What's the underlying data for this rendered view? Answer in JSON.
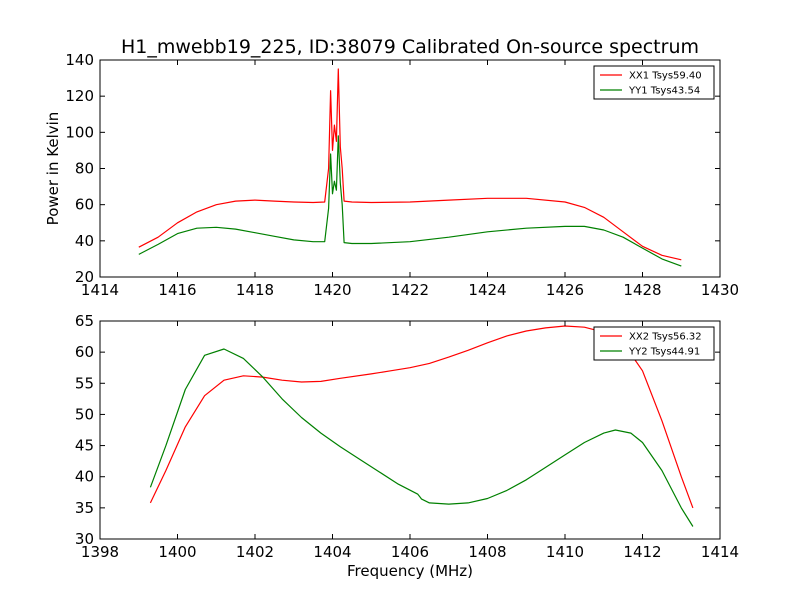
{
  "title": "H1_mwebb19_225, ID:38079 Calibrated On-source spectrum",
  "chart_data": [
    {
      "type": "line",
      "ylabel": "Power in Kelvin",
      "xlabel": "",
      "xlim": [
        1414,
        1430
      ],
      "ylim": [
        20,
        140
      ],
      "xticks": [
        1414,
        1416,
        1418,
        1420,
        1422,
        1424,
        1426,
        1428,
        1430
      ],
      "yticks": [
        20,
        40,
        60,
        80,
        100,
        120,
        140
      ],
      "legend_placement": "top-right",
      "series": [
        {
          "name": "XX1 Tsys59.40",
          "color": "#ff0000",
          "points": [
            [
              1415.0,
              36.5
            ],
            [
              1415.5,
              42
            ],
            [
              1416.0,
              50
            ],
            [
              1416.5,
              56
            ],
            [
              1417.0,
              60
            ],
            [
              1417.5,
              62
            ],
            [
              1418.0,
              62.5
            ],
            [
              1418.5,
              62
            ],
            [
              1419.0,
              61.5
            ],
            [
              1419.5,
              61.2
            ],
            [
              1419.8,
              61.5
            ],
            [
              1419.9,
              80
            ],
            [
              1419.95,
              123
            ],
            [
              1420.0,
              90
            ],
            [
              1420.05,
              104
            ],
            [
              1420.1,
              95
            ],
            [
              1420.15,
              135
            ],
            [
              1420.2,
              92
            ],
            [
              1420.25,
              80
            ],
            [
              1420.3,
              62
            ],
            [
              1420.5,
              61.5
            ],
            [
              1421.0,
              61.2
            ],
            [
              1422.0,
              61.5
            ],
            [
              1423.0,
              62.5
            ],
            [
              1424.0,
              63.5
            ],
            [
              1425.0,
              63.5
            ],
            [
              1426.0,
              61.5
            ],
            [
              1426.5,
              58.5
            ],
            [
              1427.0,
              53
            ],
            [
              1427.5,
              45
            ],
            [
              1428.0,
              37
            ],
            [
              1428.5,
              32
            ],
            [
              1429.0,
              29.5
            ]
          ]
        },
        {
          "name": "YY1 Tsys43.54",
          "color": "#008000",
          "points": [
            [
              1415.0,
              32.5
            ],
            [
              1415.5,
              38
            ],
            [
              1416.0,
              44
            ],
            [
              1416.5,
              47
            ],
            [
              1417.0,
              47.5
            ],
            [
              1417.5,
              46.5
            ],
            [
              1418.0,
              44.5
            ],
            [
              1418.5,
              42.5
            ],
            [
              1419.0,
              40.5
            ],
            [
              1419.5,
              39.5
            ],
            [
              1419.8,
              39.5
            ],
            [
              1419.9,
              58
            ],
            [
              1419.95,
              88
            ],
            [
              1420.0,
              66
            ],
            [
              1420.05,
              73
            ],
            [
              1420.1,
              68
            ],
            [
              1420.15,
              98
            ],
            [
              1420.2,
              72
            ],
            [
              1420.25,
              60
            ],
            [
              1420.3,
              39
            ],
            [
              1420.5,
              38.5
            ],
            [
              1421.0,
              38.5
            ],
            [
              1422.0,
              39.5
            ],
            [
              1423.0,
              42
            ],
            [
              1424.0,
              45
            ],
            [
              1425.0,
              47
            ],
            [
              1426.0,
              48
            ],
            [
              1426.5,
              48
            ],
            [
              1427.0,
              46
            ],
            [
              1427.5,
              42
            ],
            [
              1428.0,
              36
            ],
            [
              1428.5,
              30
            ],
            [
              1429.0,
              26
            ]
          ]
        }
      ]
    },
    {
      "type": "line",
      "ylabel": "",
      "xlabel": "Frequency (MHz)",
      "xlim": [
        1398,
        1414
      ],
      "ylim": [
        30,
        65
      ],
      "xticks": [
        1398,
        1400,
        1402,
        1404,
        1406,
        1408,
        1410,
        1412,
        1414
      ],
      "yticks": [
        30,
        35,
        40,
        45,
        50,
        55,
        60,
        65
      ],
      "legend_placement": "top-right",
      "series": [
        {
          "name": "XX2 Tsys56.32",
          "color": "#ff0000",
          "points": [
            [
              1399.3,
              35.8
            ],
            [
              1399.7,
              41
            ],
            [
              1400.2,
              48
            ],
            [
              1400.7,
              53
            ],
            [
              1401.2,
              55.5
            ],
            [
              1401.7,
              56.2
            ],
            [
              1402.2,
              56
            ],
            [
              1402.7,
              55.5
            ],
            [
              1403.2,
              55.2
            ],
            [
              1403.7,
              55.3
            ],
            [
              1404.2,
              55.8
            ],
            [
              1405.0,
              56.5
            ],
            [
              1405.5,
              57
            ],
            [
              1406.0,
              57.5
            ],
            [
              1406.5,
              58.2
            ],
            [
              1407.0,
              59.2
            ],
            [
              1407.5,
              60.3
            ],
            [
              1408.0,
              61.5
            ],
            [
              1408.5,
              62.6
            ],
            [
              1409.0,
              63.4
            ],
            [
              1409.5,
              63.9
            ],
            [
              1410.0,
              64.2
            ],
            [
              1410.5,
              64
            ],
            [
              1411.0,
              63.2
            ],
            [
              1411.5,
              61.5
            ],
            [
              1412.0,
              57
            ],
            [
              1412.5,
              49
            ],
            [
              1413.0,
              40
            ],
            [
              1413.3,
              35
            ]
          ]
        },
        {
          "name": "YY2 Tsys44.91",
          "color": "#008000",
          "points": [
            [
              1399.3,
              38.3
            ],
            [
              1399.7,
              45
            ],
            [
              1400.2,
              54
            ],
            [
              1400.7,
              59.5
            ],
            [
              1401.2,
              60.5
            ],
            [
              1401.7,
              59
            ],
            [
              1402.2,
              56
            ],
            [
              1402.7,
              52.5
            ],
            [
              1403.2,
              49.5
            ],
            [
              1403.7,
              47
            ],
            [
              1404.2,
              44.8
            ],
            [
              1404.7,
              42.8
            ],
            [
              1405.2,
              40.8
            ],
            [
              1405.7,
              38.8
            ],
            [
              1406.2,
              37.2
            ],
            [
              1406.25,
              36.8
            ],
            [
              1406.3,
              36.4
            ],
            [
              1406.5,
              35.8
            ],
            [
              1407.0,
              35.6
            ],
            [
              1407.5,
              35.8
            ],
            [
              1408.0,
              36.5
            ],
            [
              1408.5,
              37.8
            ],
            [
              1409.0,
              39.5
            ],
            [
              1409.5,
              41.5
            ],
            [
              1410.0,
              43.5
            ],
            [
              1410.5,
              45.5
            ],
            [
              1411.0,
              47
            ],
            [
              1411.3,
              47.5
            ],
            [
              1411.7,
              47
            ],
            [
              1412.0,
              45.5
            ],
            [
              1412.5,
              41
            ],
            [
              1413.0,
              35
            ],
            [
              1413.3,
              32
            ]
          ]
        }
      ]
    }
  ]
}
